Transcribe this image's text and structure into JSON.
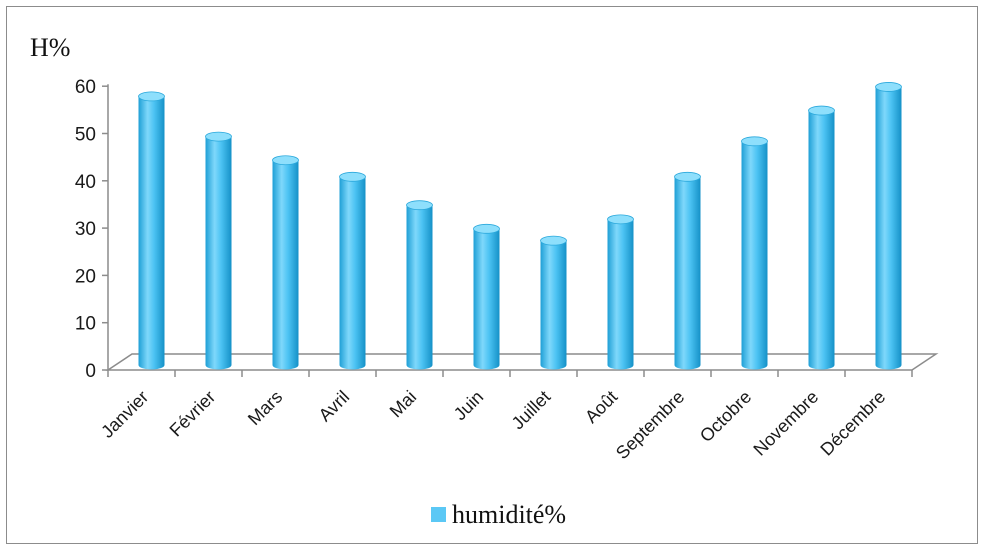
{
  "chart_data": {
    "type": "bar",
    "ylabel": "H%",
    "ylim": [
      0,
      60
    ],
    "yticks": [
      0,
      10,
      20,
      30,
      40,
      50,
      60
    ],
    "categories": [
      "Janvier",
      "Février",
      "Mars",
      "Avril",
      "Mai",
      "Juin",
      "Juillet",
      "Août",
      "Septembre",
      "Octobre",
      "Novembre",
      "Décembre"
    ],
    "series": [
      {
        "name": "humidité%",
        "color": "#5bc8f5",
        "values": [
          57,
          48.5,
          43.5,
          40,
          34,
          29,
          26.5,
          31,
          40,
          47.5,
          54,
          59
        ]
      }
    ],
    "legend_position": "bottom",
    "style": "3d-cylinder"
  }
}
